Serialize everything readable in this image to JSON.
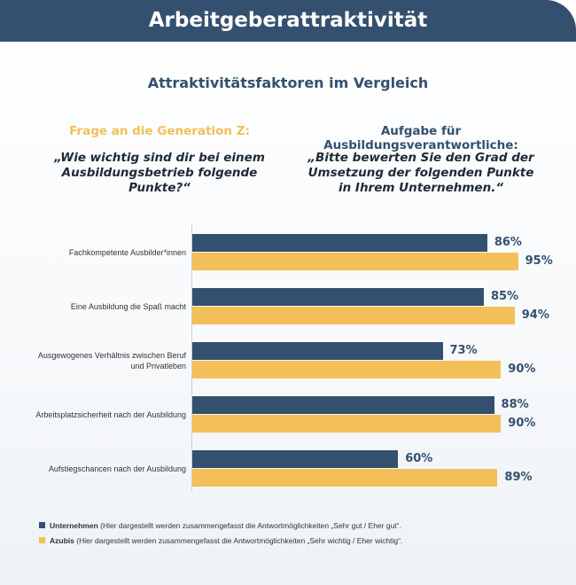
{
  "header": {
    "title": "Arbeitgeberattraktivität"
  },
  "subtitle": "Attraktivitätsfaktoren im Vergleich",
  "columns": {
    "left": {
      "heading": "Frage an die Generation Z:",
      "question": "„Wie wichtig sind dir bei einem Ausbildungsbetrieb folgende Punkte?“"
    },
    "right": {
      "heading": "Aufgabe für Ausbildungsverantwortliche:",
      "question": "„Bitte bewerten Sie den Grad der Umsetzung der folgenden Punkte in Ihrem Unternehmen.“"
    }
  },
  "legend": {
    "items": [
      {
        "name": "Unternehmen",
        "note": " (Hier dargestellt werden zusammengefasst die Antwortmöglichkeiten „Sehr gut / Eher gut“."
      },
      {
        "name": "Azubis",
        "note": " (Hier dargestellt werden zusammengefasst die Antwortmöglichkeiten „Sehr wichtig / Eher wichtig“."
      }
    ]
  },
  "colors": {
    "unternehmen": "#34506f",
    "azubis": "#f3bf58"
  },
  "chart_data": {
    "type": "bar",
    "orientation": "horizontal",
    "categories": [
      "Fachkompetente Ausbilder*innen",
      "Eine Ausbildung die Spaß macht",
      "Ausgewogenes Verhältnis zwischen Beruf und Privatleben",
      "Arbeitsplatzsicherheit nach der Ausbildung",
      "Aufstiegschancen nach der Ausbildung"
    ],
    "series": [
      {
        "name": "Unternehmen",
        "values": [
          86,
          85,
          73,
          88,
          60
        ],
        "labels": [
          "86%",
          "85%",
          "73%",
          "88%",
          "60%"
        ]
      },
      {
        "name": "Azubis",
        "values": [
          95,
          94,
          90,
          90,
          89
        ],
        "labels": [
          "95%",
          "94%",
          "90%",
          "90%",
          "89%"
        ]
      }
    ],
    "xlim": [
      0,
      100
    ],
    "grid": false,
    "legend": "bottom-left"
  }
}
